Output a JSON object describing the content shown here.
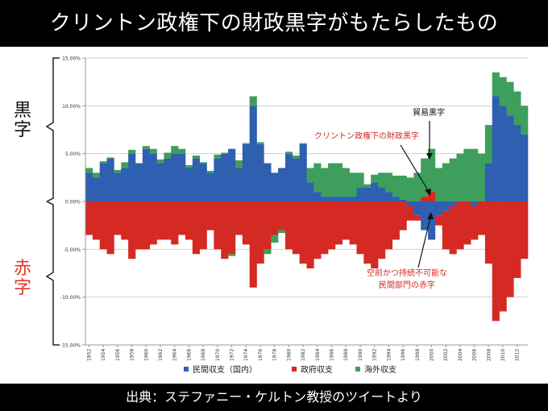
{
  "title": "クリントン政権下の財政黒字がもたらしたもの",
  "footer": "出典：ステファニー・ケルトン教授のツイートより",
  "side_labels": {
    "surplus": "黒字",
    "deficit": "赤字"
  },
  "colors": {
    "private": "#2e5fb0",
    "government": "#d42a23",
    "foreign": "#3e9e5c",
    "annotation_red": "#d42a23",
    "surplus_label": "#111111",
    "deficit_label": "#e03a2a"
  },
  "chart_data": {
    "type": "area",
    "title": "",
    "xlabel": "",
    "ylabel": "",
    "ylim": [
      -15,
      15
    ],
    "y_ticks": [
      "15.00%",
      "10.00%",
      "5.00%",
      "0.00%",
      "-5.00%",
      "-10.00%",
      "-15.00%"
    ],
    "x_tick_labels": [
      "1952",
      "1954",
      "1956",
      "1958",
      "1960",
      "1962",
      "1964",
      "1966",
      "1968",
      "1970",
      "1972",
      "1974",
      "1976",
      "1978",
      "1980",
      "1982",
      "1984",
      "1986",
      "1988",
      "1990",
      "1992",
      "1994",
      "1996",
      "1998",
      "2000",
      "2002",
      "2004",
      "2006",
      "2008",
      "2010",
      "2012"
    ],
    "x": [
      1952,
      1953,
      1954,
      1955,
      1956,
      1957,
      1958,
      1959,
      1960,
      1961,
      1962,
      1963,
      1964,
      1965,
      1966,
      1967,
      1968,
      1969,
      1970,
      1971,
      1972,
      1973,
      1974,
      1975,
      1976,
      1977,
      1978,
      1979,
      1980,
      1981,
      1982,
      1983,
      1984,
      1985,
      1986,
      1987,
      1988,
      1989,
      1990,
      1991,
      1992,
      1993,
      1994,
      1995,
      1996,
      1997,
      1998,
      1999,
      2000,
      2001,
      2002,
      2003,
      2004,
      2005,
      2006,
      2007,
      2008,
      2009,
      2010,
      2011,
      2012,
      2013
    ],
    "series": [
      {
        "name": "民間収支（国内）",
        "values": [
          3,
          2.5,
          4,
          4.5,
          3,
          3.5,
          5,
          4,
          5.5,
          5,
          4,
          4.5,
          5,
          5,
          3.5,
          4.5,
          4,
          3,
          4.5,
          5,
          5.5,
          3.5,
          6,
          10,
          6,
          4,
          3,
          3.5,
          5,
          4.5,
          6,
          2,
          1,
          0.5,
          0.5,
          0.5,
          0.5,
          0.5,
          1.5,
          1.5,
          2,
          1.5,
          1,
          0.5,
          0.2,
          -0.5,
          -1.5,
          -3,
          -4,
          -1.5,
          -1,
          -0.5,
          0,
          0,
          -0.5,
          0,
          4,
          11,
          10,
          9,
          8,
          7
        ]
      },
      {
        "name": "政府収支",
        "values": [
          -3.5,
          -4,
          -5,
          -5.5,
          -3.5,
          -4,
          -6,
          -5,
          -5,
          -4.5,
          -4,
          -4,
          -4.5,
          -3.5,
          -4,
          -5.5,
          -5,
          -3,
          -5,
          -6,
          -5.5,
          -3.5,
          -4.5,
          -9,
          -6.5,
          -5,
          -3.5,
          -3,
          -5,
          -5.5,
          -6.5,
          -7,
          -6,
          -5.5,
          -5,
          -4.5,
          -4,
          -4.5,
          -5.5,
          -6.5,
          -7,
          -6,
          -5,
          -4,
          -3,
          -1.5,
          -0.5,
          0.5,
          1,
          -1,
          -4,
          -5,
          -5,
          -4.5,
          -3.5,
          -3.5,
          -6.5,
          -12.5,
          -11.5,
          -10,
          -8,
          -6
        ]
      },
      {
        "name": "海外収支",
        "values": [
          0.5,
          0.5,
          0.2,
          0.1,
          0.3,
          0.6,
          0.4,
          0,
          0.3,
          0.5,
          0.4,
          0.6,
          0.8,
          0.5,
          0.3,
          0.3,
          0.1,
          0.2,
          0.4,
          0.1,
          -0.2,
          0.8,
          0.1,
          1,
          0.2,
          -0.5,
          -0.8,
          -0.3,
          0.2,
          0.3,
          0.1,
          1.5,
          3,
          3,
          3.5,
          3.5,
          3,
          2.5,
          1.5,
          0.3,
          0.8,
          1.5,
          2,
          2.2,
          2.5,
          2.5,
          3,
          4,
          4.5,
          3.5,
          4,
          4.5,
          5,
          5.5,
          5.5,
          5,
          4,
          2.5,
          3,
          3.5,
          3.5,
          3
        ]
      }
    ],
    "annotations": [
      {
        "text": "貿易黒字",
        "color": "#111111"
      },
      {
        "text": "クリントン政権下の財政黒字",
        "color": "#d42a23"
      },
      {
        "text": "空前かつ持続不可能な",
        "color": "#d42a23"
      },
      {
        "text": "民間部門の赤字",
        "color": "#d42a23"
      }
    ]
  }
}
